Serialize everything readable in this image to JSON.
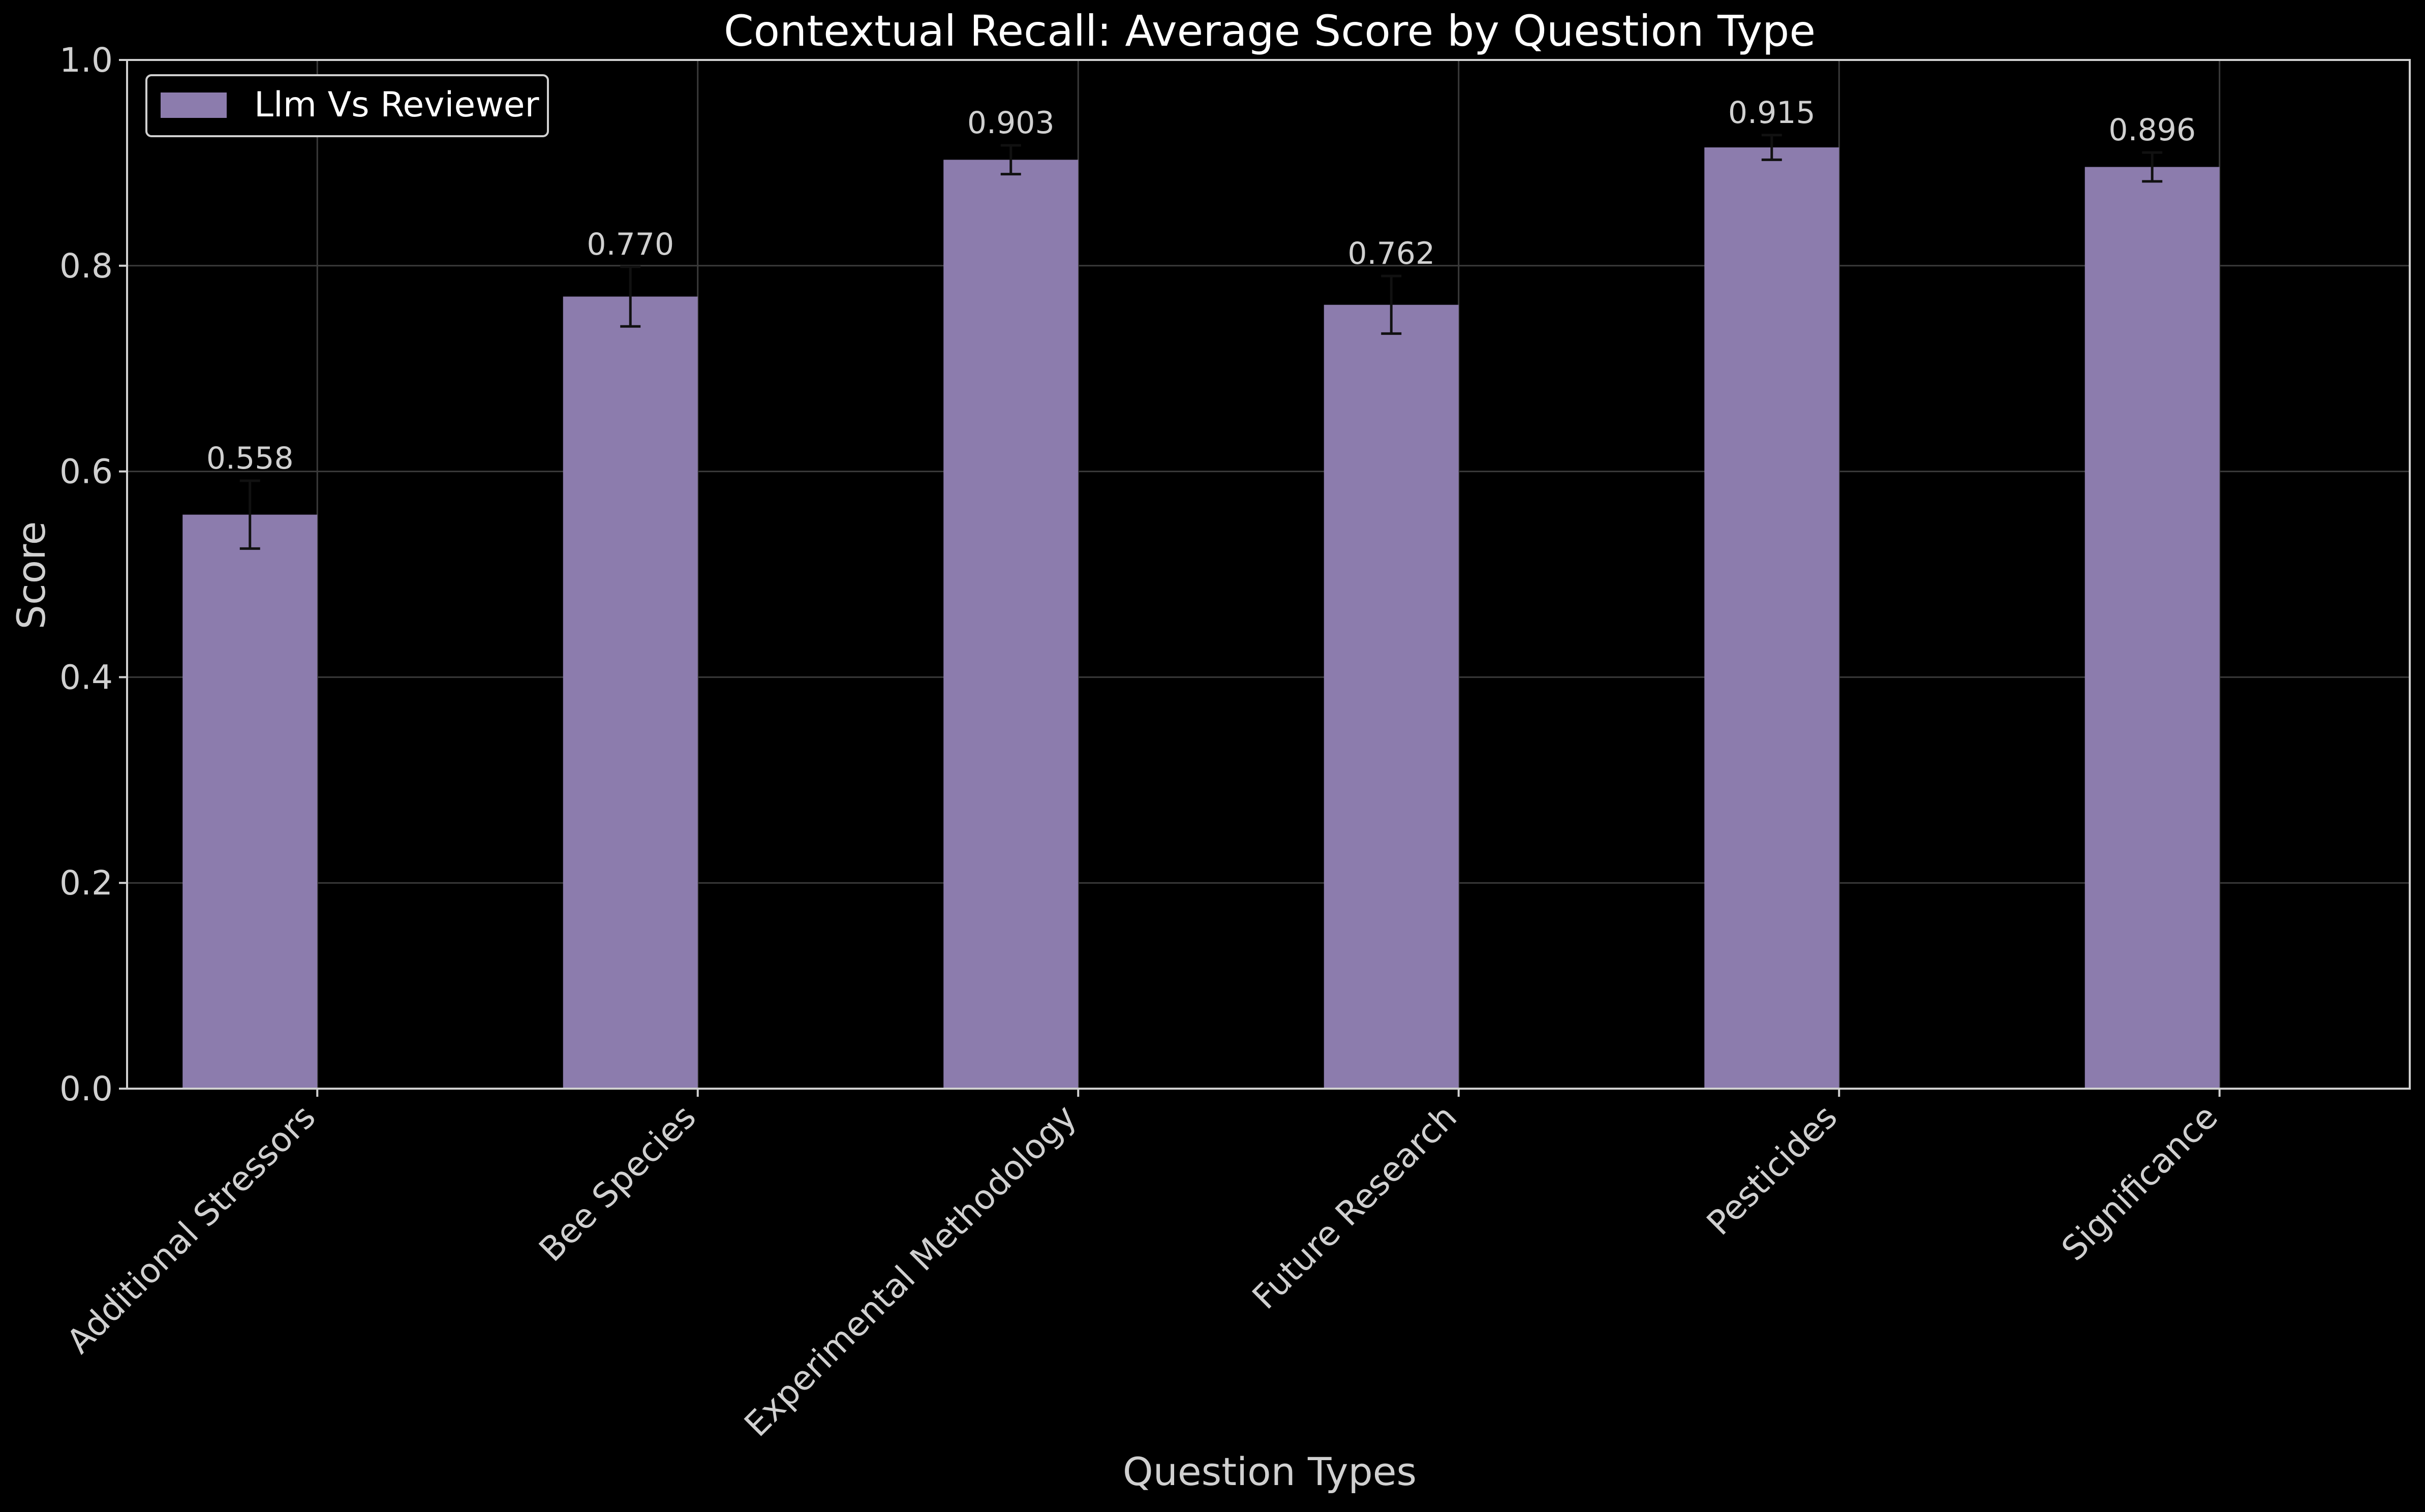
{
  "chart_data": {
    "type": "bar",
    "title": "Contextual Recall: Average Score by Question Type",
    "xlabel": "Question Types",
    "ylabel": "Score",
    "ylim": [
      0,
      1.0
    ],
    "yticks": [
      "0.0",
      "0.2",
      "0.4",
      "0.6",
      "0.8",
      "1.0"
    ],
    "categories": [
      "Additional Stressors",
      "Bee Species",
      "Experimental Methodology",
      "Future Research",
      "Pesticides",
      "Significance"
    ],
    "series": [
      {
        "name": "Llm Vs Reviewer",
        "values": [
          0.558,
          0.77,
          0.903,
          0.762,
          0.915,
          0.896
        ],
        "value_labels": [
          "0.558",
          "0.770",
          "0.903",
          "0.762",
          "0.915",
          "0.896"
        ],
        "error": [
          0.033,
          0.029,
          0.014,
          0.028,
          0.012,
          0.014
        ],
        "color": "#8c7cad"
      }
    ],
    "grid": true,
    "legend_position": "top-left"
  },
  "colors": {
    "background": "#000000",
    "bar": "#8c7cad",
    "axis": "#d0d0d0",
    "grid": "#3a3a3a",
    "error_bar": "#111111"
  }
}
